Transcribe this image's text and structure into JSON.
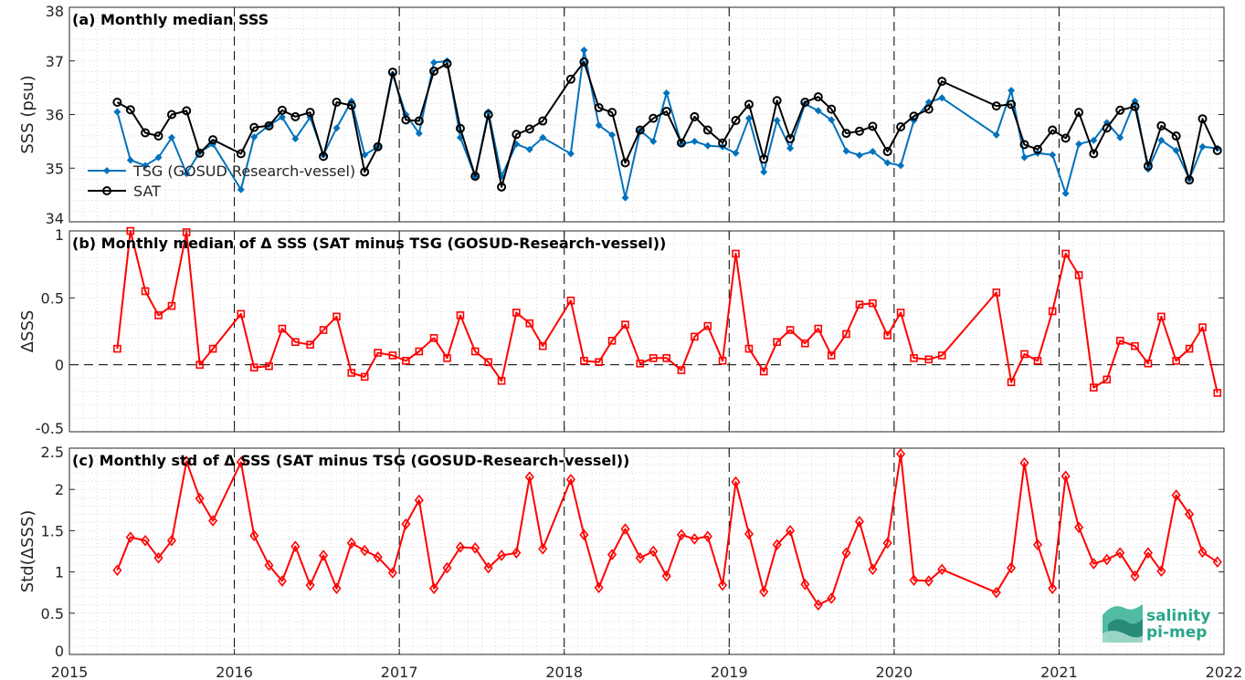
{
  "chart_data": [
    {
      "type": "line",
      "title": "(a) Monthly median SSS",
      "ylabel": "SSS (psu)",
      "ylim": [
        34,
        38
      ],
      "yticks": [
        "34",
        "35",
        "36",
        "37",
        "38"
      ],
      "xlim": [
        2015,
        2022
      ],
      "xticks": [
        "2015",
        "2016",
        "2017",
        "2018",
        "2019",
        "2020",
        "2021",
        "2022"
      ],
      "grid": true,
      "legend_position": "bottom-left",
      "series": [
        {
          "name": "TSG (GOSUD Research-vessel)",
          "color": "#0072BD",
          "marker": "dot",
          "x": [
            2015.29,
            2015.37,
            2015.46,
            2015.54,
            2015.62,
            2015.71,
            2015.79,
            2015.87,
            2016.04,
            2016.12,
            2016.21,
            2016.29,
            2016.37,
            2016.46,
            2016.54,
            2016.62,
            2016.71,
            2016.79,
            2016.87,
            2016.96,
            2017.04,
            2017.12,
            2017.21,
            2017.29,
            2017.37,
            2017.46,
            2017.54,
            2017.62,
            2017.71,
            2017.79,
            2017.87,
            2018.04,
            2018.12,
            2018.21,
            2018.29,
            2018.37,
            2018.46,
            2018.54,
            2018.62,
            2018.71,
            2018.79,
            2018.87,
            2018.96,
            2019.04,
            2019.12,
            2019.21,
            2019.29,
            2019.37,
            2019.46,
            2019.54,
            2019.62,
            2019.71,
            2019.79,
            2019.87,
            2019.96,
            2020.04,
            2020.12,
            2020.21,
            2020.29,
            2020.62,
            2020.71,
            2020.79,
            2020.87,
            2020.96,
            2021.04,
            2021.12,
            2021.21,
            2021.29,
            2021.37,
            2021.46,
            2021.54,
            2021.62,
            2021.71,
            2021.79,
            2021.87,
            2021.96
          ],
          "values": [
            36.05,
            35.15,
            35.05,
            35.2,
            35.57,
            34.9,
            35.3,
            35.45,
            34.6,
            35.58,
            35.8,
            35.95,
            35.55,
            35.95,
            35.25,
            35.75,
            36.25,
            35.25,
            35.4,
            36.75,
            36.0,
            35.65,
            36.97,
            37.0,
            35.57,
            34.85,
            36.05,
            34.85,
            35.45,
            35.35,
            35.57,
            35.27,
            37.2,
            35.8,
            35.62,
            34.45,
            35.7,
            35.5,
            36.4,
            35.45,
            35.5,
            35.42,
            35.4,
            35.28,
            35.93,
            34.93,
            35.89,
            35.37,
            36.2,
            36.07,
            35.9,
            35.32,
            35.24,
            35.31,
            35.1,
            35.05,
            35.89,
            36.23,
            36.31,
            35.62,
            36.45,
            35.2,
            35.28,
            35.25,
            34.53,
            35.45,
            35.52,
            35.85,
            35.57,
            36.25,
            34.98,
            35.52,
            35.33,
            34.8,
            35.4,
            35.37
          ]
        },
        {
          "name": "SAT",
          "color": "#000000",
          "marker": "circle",
          "x": [
            2015.29,
            2015.37,
            2015.46,
            2015.54,
            2015.62,
            2015.71,
            2015.79,
            2015.87,
            2016.04,
            2016.12,
            2016.21,
            2016.29,
            2016.37,
            2016.46,
            2016.54,
            2016.62,
            2016.71,
            2016.79,
            2016.87,
            2016.96,
            2017.04,
            2017.12,
            2017.21,
            2017.29,
            2017.37,
            2017.46,
            2017.54,
            2017.62,
            2017.71,
            2017.79,
            2017.87,
            2018.04,
            2018.12,
            2018.21,
            2018.29,
            2018.37,
            2018.46,
            2018.54,
            2018.62,
            2018.71,
            2018.79,
            2018.87,
            2018.96,
            2019.04,
            2019.12,
            2019.21,
            2019.29,
            2019.37,
            2019.46,
            2019.54,
            2019.62,
            2019.71,
            2019.79,
            2019.87,
            2019.96,
            2020.04,
            2020.12,
            2020.21,
            2020.29,
            2020.62,
            2020.71,
            2020.79,
            2020.87,
            2020.96,
            2021.04,
            2021.12,
            2021.21,
            2021.29,
            2021.37,
            2021.46,
            2021.54,
            2021.62,
            2021.71,
            2021.79,
            2021.87,
            2021.96
          ],
          "values": [
            36.23,
            36.09,
            35.66,
            35.6,
            36.0,
            36.07,
            35.28,
            35.53,
            35.27,
            35.76,
            35.79,
            36.08,
            35.96,
            36.04,
            35.22,
            36.23,
            36.17,
            34.93,
            35.4,
            36.79,
            35.9,
            35.88,
            36.81,
            36.95,
            35.74,
            34.85,
            36.0,
            34.65,
            35.63,
            35.73,
            35.88,
            36.66,
            36.98,
            36.13,
            36.04,
            35.1,
            35.71,
            35.93,
            36.06,
            35.47,
            35.96,
            35.71,
            35.47,
            35.89,
            36.19,
            35.17,
            36.26,
            35.55,
            36.23,
            36.33,
            36.1,
            35.65,
            35.69,
            35.78,
            35.31,
            35.77,
            35.97,
            36.1,
            36.62,
            36.16,
            36.19,
            35.44,
            35.35,
            35.71,
            35.56,
            36.04,
            35.27,
            35.75,
            36.08,
            36.15,
            35.04,
            35.79,
            35.6,
            34.78,
            35.92,
            35.33
          ]
        }
      ]
    },
    {
      "type": "line",
      "title": "(b) Monthly median of Δ SSS (SAT minus TSG (GOSUD-Research-vessel))",
      "ylabel": "ΔSSS",
      "ylim": [
        -0.5,
        1
      ],
      "yticks": [
        "-0.5",
        "0",
        "0.5",
        "1"
      ],
      "reference_line": 0,
      "xlim": [
        2015,
        2022
      ],
      "grid": true,
      "series": [
        {
          "color": "#ff0000",
          "marker": "square",
          "x": [
            2015.29,
            2015.37,
            2015.46,
            2015.54,
            2015.62,
            2015.71,
            2015.79,
            2015.87,
            2016.04,
            2016.12,
            2016.21,
            2016.29,
            2016.37,
            2016.46,
            2016.54,
            2016.62,
            2016.71,
            2016.79,
            2016.87,
            2016.96,
            2017.04,
            2017.12,
            2017.21,
            2017.29,
            2017.37,
            2017.46,
            2017.54,
            2017.62,
            2017.71,
            2017.79,
            2017.87,
            2018.04,
            2018.12,
            2018.21,
            2018.29,
            2018.37,
            2018.46,
            2018.54,
            2018.62,
            2018.71,
            2018.79,
            2018.87,
            2018.96,
            2019.04,
            2019.12,
            2019.21,
            2019.29,
            2019.37,
            2019.46,
            2019.54,
            2019.62,
            2019.71,
            2019.79,
            2019.87,
            2019.96,
            2020.04,
            2020.12,
            2020.21,
            2020.29,
            2020.62,
            2020.71,
            2020.79,
            2020.87,
            2020.96,
            2021.04,
            2021.12,
            2021.21,
            2021.29,
            2021.37,
            2021.46,
            2021.54,
            2021.62,
            2021.71,
            2021.79,
            2021.87,
            2021.96
          ],
          "values": [
            0.12,
            1.0,
            0.55,
            0.37,
            0.44,
            0.99,
            0.0,
            0.12,
            0.38,
            -0.02,
            -0.01,
            0.27,
            0.17,
            0.15,
            0.26,
            0.36,
            -0.06,
            -0.09,
            0.09,
            0.07,
            0.03,
            0.1,
            0.2,
            0.05,
            0.37,
            0.1,
            0.02,
            -0.12,
            0.39,
            0.31,
            0.14,
            0.48,
            0.03,
            0.02,
            0.18,
            0.3,
            0.01,
            0.05,
            0.05,
            -0.04,
            0.21,
            0.29,
            0.03,
            0.83,
            0.12,
            -0.05,
            0.17,
            0.26,
            0.16,
            0.27,
            0.07,
            0.23,
            0.45,
            0.46,
            0.22,
            0.39,
            0.05,
            0.04,
            0.07,
            0.54,
            -0.13,
            0.08,
            0.03,
            0.4,
            0.83,
            0.67,
            -0.17,
            -0.11,
            0.18,
            0.14,
            0.01,
            0.36,
            0.03,
            0.12,
            0.28,
            -0.21
          ]
        }
      ]
    },
    {
      "type": "line",
      "title": "(c) Monthly std of Δ SSS (SAT minus TSG (GOSUD-Research-vessel))",
      "ylabel": "Std(ΔSSS)",
      "ylim": [
        0,
        2.5
      ],
      "yticks": [
        "0",
        "0.5",
        "1",
        "1.5",
        "2",
        "2.5"
      ],
      "xlim": [
        2015,
        2022
      ],
      "grid": true,
      "series": [
        {
          "color": "#ff0000",
          "marker": "diamond",
          "x": [
            2015.29,
            2015.37,
            2015.46,
            2015.54,
            2015.62,
            2015.71,
            2015.79,
            2015.87,
            2016.04,
            2016.12,
            2016.21,
            2016.29,
            2016.37,
            2016.46,
            2016.54,
            2016.62,
            2016.71,
            2016.79,
            2016.87,
            2016.96,
            2017.04,
            2017.12,
            2017.21,
            2017.29,
            2017.37,
            2017.46,
            2017.54,
            2017.62,
            2017.71,
            2017.79,
            2017.87,
            2018.04,
            2018.12,
            2018.21,
            2018.29,
            2018.37,
            2018.46,
            2018.54,
            2018.62,
            2018.71,
            2018.79,
            2018.87,
            2018.96,
            2019.04,
            2019.12,
            2019.21,
            2019.29,
            2019.37,
            2019.46,
            2019.54,
            2019.62,
            2019.71,
            2019.79,
            2019.87,
            2019.96,
            2020.04,
            2020.12,
            2020.21,
            2020.29,
            2020.62,
            2020.71,
            2020.79,
            2020.87,
            2020.96,
            2021.04,
            2021.12,
            2021.21,
            2021.29,
            2021.37,
            2021.46,
            2021.54,
            2021.62,
            2021.71,
            2021.79,
            2021.87,
            2021.96
          ],
          "values": [
            1.02,
            1.42,
            1.38,
            1.17,
            1.38,
            2.34,
            1.89,
            1.62,
            2.33,
            1.44,
            1.08,
            0.89,
            1.31,
            0.84,
            1.2,
            0.8,
            1.35,
            1.26,
            1.18,
            0.99,
            1.58,
            1.87,
            0.8,
            1.05,
            1.3,
            1.29,
            1.05,
            1.2,
            1.23,
            2.15,
            1.28,
            2.12,
            1.45,
            0.81,
            1.21,
            1.52,
            1.17,
            1.25,
            0.95,
            1.45,
            1.4,
            1.43,
            0.84,
            2.09,
            1.46,
            0.76,
            1.33,
            1.5,
            0.85,
            0.6,
            0.68,
            1.23,
            1.61,
            1.03,
            1.35,
            2.43,
            0.9,
            0.89,
            1.03,
            0.75,
            1.05,
            2.32,
            1.33,
            0.8,
            2.16,
            1.54,
            1.1,
            1.15,
            1.23,
            0.95,
            1.23,
            1.01,
            1.93,
            1.7,
            1.24,
            1.12
          ]
        }
      ]
    }
  ],
  "logo": {
    "line1": "salinity",
    "line2": "pi-mep",
    "color": "#2aa68a"
  }
}
